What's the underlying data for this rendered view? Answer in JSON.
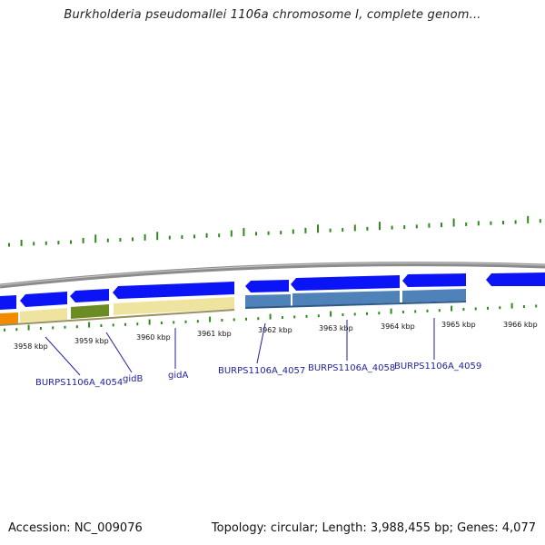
{
  "title": "Burkholderia pseudomallei 1106a chromosome I, complete genom...",
  "footer": {
    "accession": "Accession: NC_009076",
    "info": "Topology: circular; Length: 3,988,455 bp; Genes: 4,077"
  },
  "colors": {
    "gene_blue": "#0a14f5",
    "gene_steel": "#4f82b8",
    "gene_cream": "#efe3a0",
    "gene_olive": "#6b8c22",
    "gene_orange": "#f28b00",
    "tick_green": "#2f8a1c",
    "backbone": "#8c8c8c",
    "label_navy": "#1f1f9e"
  },
  "kbp_labels": [
    "3958 kbp",
    "3959 kbp",
    "3960 kbp",
    "3961 kbp",
    "3962 kbp",
    "3963 kbp",
    "3964 kbp",
    "3965 kbp",
    "3966 kbp"
  ],
  "genes": [
    {
      "name": "BURPS1106A_4054"
    },
    {
      "name": "gidB"
    },
    {
      "name": "gidA"
    },
    {
      "name": "BURPS1106A_4057"
    },
    {
      "name": "BURPS1106A_4058"
    },
    {
      "name": "BURPS1106A_4059"
    }
  ]
}
